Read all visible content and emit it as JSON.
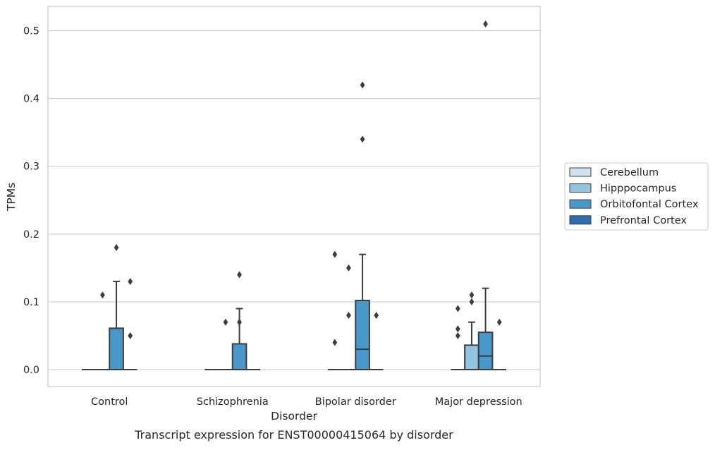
{
  "chart_data": {
    "type": "boxplot",
    "title": "",
    "caption": "Transcript expression for ENST00000415064 by disorder",
    "xlabel": "Disorder",
    "ylabel": "TPMs",
    "ylim": [
      -0.025,
      0.536
    ],
    "yticks": [
      "0.0",
      "0.1",
      "0.2",
      "0.3",
      "0.4",
      "0.5"
    ],
    "ytick_values": [
      0,
      0.1,
      0.2,
      0.3,
      0.4,
      0.5
    ],
    "grid": "horizontal",
    "legend_position": "right",
    "categories": [
      "Control",
      "Schizophrenia",
      "Bipolar disorder",
      "Major depression"
    ],
    "series": [
      {
        "name": "Cerebellum",
        "color": "#d0e1f2",
        "boxes": [
          {
            "min": 0,
            "q1": 0,
            "median": 0,
            "q3": 0,
            "max": 0,
            "outliers": []
          },
          {
            "min": 0,
            "q1": 0,
            "median": 0,
            "q3": 0,
            "max": 0,
            "outliers": []
          },
          {
            "min": 0,
            "q1": 0,
            "median": 0,
            "q3": 0,
            "max": 0,
            "outliers": [
              0.04,
              0.17
            ]
          },
          {
            "min": 0,
            "q1": 0,
            "median": 0,
            "q3": 0,
            "max": 0,
            "outliers": [
              0.05,
              0.06,
              0.09
            ]
          }
        ]
      },
      {
        "name": "Hipppocampus",
        "color": "#94c4df",
        "boxes": [
          {
            "min": 0,
            "q1": 0,
            "median": 0,
            "q3": 0,
            "max": 0,
            "outliers": [
              0.11
            ]
          },
          {
            "min": 0,
            "q1": 0,
            "median": 0,
            "q3": 0,
            "max": 0,
            "outliers": [
              0.07
            ]
          },
          {
            "min": 0,
            "q1": 0,
            "median": 0,
            "q3": 0,
            "max": 0,
            "outliers": [
              0.08,
              0.15
            ]
          },
          {
            "min": 0,
            "q1": 0,
            "median": 0,
            "q3": 0.036,
            "max": 0.07,
            "outliers": [
              0.1,
              0.11
            ]
          }
        ]
      },
      {
        "name": "Orbitofontal Cortex",
        "color": "#4a98c9",
        "boxes": [
          {
            "min": 0,
            "q1": 0,
            "median": 0,
            "q3": 0.061,
            "max": 0.13,
            "outliers": [
              0.18
            ]
          },
          {
            "min": 0,
            "q1": 0,
            "median": 0,
            "q3": 0.038,
            "max": 0.09,
            "outliers": [
              0.14,
              0.07
            ]
          },
          {
            "min": 0,
            "q1": 0,
            "median": 0.03,
            "q3": 0.102,
            "max": 0.17,
            "outliers": [
              0.34,
              0.42
            ]
          },
          {
            "min": 0,
            "q1": 0,
            "median": 0.02,
            "q3": 0.055,
            "max": 0.12,
            "outliers": [
              0.51
            ]
          }
        ]
      },
      {
        "name": "Prefrontal Cortex",
        "color": "#2e6ead",
        "boxes": [
          {
            "min": 0,
            "q1": 0,
            "median": 0,
            "q3": 0,
            "max": 0,
            "outliers": [
              0.05,
              0.13
            ]
          },
          {
            "min": 0,
            "q1": 0,
            "median": 0,
            "q3": 0,
            "max": 0,
            "outliers": []
          },
          {
            "min": 0,
            "q1": 0,
            "median": 0,
            "q3": 0,
            "max": 0,
            "outliers": [
              0.08
            ]
          },
          {
            "min": 0,
            "q1": 0,
            "median": 0,
            "q3": 0,
            "max": 0,
            "outliers": [
              0.07
            ]
          }
        ]
      }
    ]
  }
}
